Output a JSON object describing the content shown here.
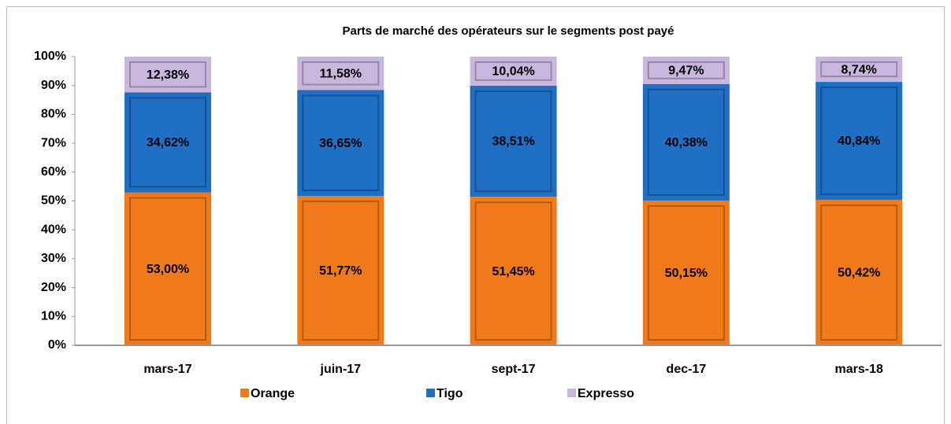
{
  "chart_data": {
    "type": "stacked_bar",
    "title": "Parts de marché  des opérateurs sur le segments post payé",
    "categories": [
      "mars-17",
      "juin-17",
      "sept-17",
      "dec-17",
      "mars-18"
    ],
    "series": [
      {
        "name": "Orange",
        "color": "#f07a1a",
        "values": [
          53.0,
          51.77,
          51.45,
          50.15,
          50.42
        ],
        "value_labels": [
          "53,00%",
          "51,77%",
          "51,45%",
          "50,15%",
          "50,42%"
        ]
      },
      {
        "name": "Tigo",
        "color": "#1f6fc5",
        "values": [
          34.62,
          36.65,
          38.51,
          40.38,
          40.84
        ],
        "value_labels": [
          "34,62%",
          "36,65%",
          "38,51%",
          "40,38%",
          "40,84%"
        ]
      },
      {
        "name": "Expresso",
        "color": "#c8b6dc",
        "values": [
          12.38,
          11.58,
          10.04,
          9.47,
          8.74
        ],
        "value_labels": [
          "12,38%",
          "11,58%",
          "10,04%",
          "9,47%",
          "8,74%"
        ]
      }
    ],
    "ylim": [
      0,
      100
    ],
    "yticks": [
      {
        "value": 0,
        "label": "0%"
      },
      {
        "value": 10,
        "label": "10%"
      },
      {
        "value": 20,
        "label": "20%"
      },
      {
        "value": 30,
        "label": "30%"
      },
      {
        "value": 40,
        "label": "40%"
      },
      {
        "value": 50,
        "label": "50%"
      },
      {
        "value": 60,
        "label": "60%"
      },
      {
        "value": 70,
        "label": "70%"
      },
      {
        "value": 80,
        "label": "80%"
      },
      {
        "value": 90,
        "label": "90%"
      },
      {
        "value": 100,
        "label": "100%"
      }
    ],
    "grid": false
  }
}
